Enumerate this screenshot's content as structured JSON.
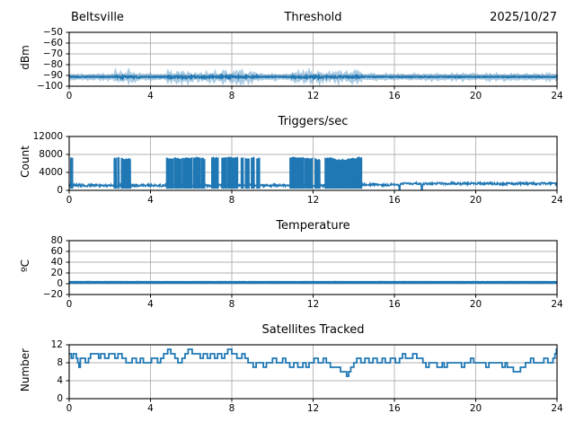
{
  "style": {
    "line_color": "#1f77b4",
    "grid_color": "#b0b0b0",
    "axis_color": "#000000",
    "background": "#ffffff",
    "legend": "none"
  },
  "chart_data": [
    {
      "type": "line",
      "title": "Threshold",
      "title_left": "Beltsville",
      "title_right": "2025/10/27",
      "ylabel": "dBm",
      "xlabel": "",
      "grid": true,
      "xlim": [
        0,
        24
      ],
      "ylim": [
        -100,
        -50
      ],
      "xticks": [
        0,
        4,
        8,
        12,
        16,
        20,
        24
      ],
      "yticks": [
        -50,
        -60,
        -70,
        -80,
        -90,
        -100
      ],
      "series": {
        "kind": "noisy_flat",
        "name": "threshold_dbm",
        "baseline": -91.4,
        "noise": 0.45,
        "dense_noise": 1.05,
        "dense_segments": [
          [
            2.2,
            3.5
          ],
          [
            4.8,
            9.3
          ],
          [
            10.9,
            14.4
          ]
        ],
        "linewidth": 1.8,
        "halo_width": 5
      }
    },
    {
      "type": "line",
      "title": "Triggers/sec",
      "ylabel": "Count",
      "xlabel": "",
      "grid": true,
      "xlim": [
        0,
        24
      ],
      "ylim": [
        0,
        12000
      ],
      "xticks": [
        0,
        4,
        8,
        12,
        16,
        20,
        24
      ],
      "yticks": [
        12000,
        8000,
        4000,
        0
      ],
      "series": {
        "kind": "bursty",
        "name": "triggers_per_sec",
        "baseline_segments": [
          [
            0,
            14.4,
            1100
          ],
          [
            14.4,
            16.25,
            1250
          ],
          [
            16.25,
            24,
            1500
          ]
        ],
        "baseline_noise": 260,
        "burst_peak": 7150,
        "burst_floor": 450,
        "burst_noise": 130,
        "burst_intervals": [
          [
            0.06,
            0.18
          ],
          [
            2.2,
            2.33
          ],
          [
            2.38,
            2.47
          ],
          [
            2.56,
            3.03
          ],
          [
            4.78,
            5.12
          ],
          [
            5.16,
            5.52
          ],
          [
            5.56,
            6.05
          ],
          [
            6.1,
            6.44
          ],
          [
            6.48,
            6.68
          ],
          [
            7.0,
            7.34
          ],
          [
            7.5,
            7.73
          ],
          [
            7.76,
            8.3
          ],
          [
            8.45,
            8.58
          ],
          [
            8.66,
            8.86
          ],
          [
            8.95,
            9.12
          ],
          [
            9.22,
            9.38
          ],
          [
            10.85,
            11.53
          ],
          [
            11.57,
            11.97
          ],
          [
            12.08,
            12.35
          ],
          [
            12.58,
            14.4
          ]
        ],
        "dropouts": [
          16.25,
          17.35
        ]
      }
    },
    {
      "type": "line",
      "title": "Temperature",
      "ylabel": "ºC",
      "xlabel": "",
      "grid": true,
      "xlim": [
        0,
        24
      ],
      "ylim": [
        -20,
        80
      ],
      "xticks": [
        0,
        4,
        8,
        12,
        16,
        20,
        24
      ],
      "yticks": [
        80,
        60,
        40,
        20,
        0,
        -20
      ],
      "series": {
        "kind": "noisy_flat",
        "name": "temperature_c",
        "baseline": 2.5,
        "noise": 0.15,
        "linewidth": 3.2
      }
    },
    {
      "type": "line",
      "title": "Satellites Tracked",
      "ylabel": "Number",
      "xlabel": "",
      "grid": true,
      "xlim": [
        0,
        24
      ],
      "ylim": [
        0,
        12
      ],
      "xticks": [
        0,
        4,
        8,
        12,
        16,
        20,
        24
      ],
      "yticks": [
        12,
        8,
        4,
        0
      ],
      "series": {
        "kind": "steps",
        "name": "satellites_tracked",
        "linewidth": 1.8,
        "points": [
          [
            0,
            10
          ],
          [
            0.1,
            9
          ],
          [
            0.2,
            10
          ],
          [
            0.35,
            9
          ],
          [
            0.42,
            8
          ],
          [
            0.48,
            7
          ],
          [
            0.55,
            9
          ],
          [
            0.8,
            8
          ],
          [
            0.95,
            9
          ],
          [
            1.05,
            10
          ],
          [
            1.45,
            9
          ],
          [
            1.55,
            10
          ],
          [
            1.75,
            9
          ],
          [
            1.95,
            10
          ],
          [
            2.25,
            9
          ],
          [
            2.4,
            10
          ],
          [
            2.6,
            9
          ],
          [
            2.8,
            8
          ],
          [
            3.1,
            9
          ],
          [
            3.3,
            8
          ],
          [
            3.5,
            9
          ],
          [
            3.65,
            8
          ],
          [
            4.05,
            9
          ],
          [
            4.35,
            8
          ],
          [
            4.5,
            9
          ],
          [
            4.65,
            10
          ],
          [
            4.85,
            11
          ],
          [
            5.0,
            10
          ],
          [
            5.2,
            9
          ],
          [
            5.35,
            8
          ],
          [
            5.55,
            9
          ],
          [
            5.7,
            10
          ],
          [
            5.85,
            11
          ],
          [
            6.05,
            10
          ],
          [
            6.45,
            9
          ],
          [
            6.6,
            10
          ],
          [
            6.8,
            9
          ],
          [
            6.95,
            10
          ],
          [
            7.15,
            9
          ],
          [
            7.3,
            10
          ],
          [
            7.5,
            9
          ],
          [
            7.65,
            10
          ],
          [
            7.8,
            11
          ],
          [
            8.0,
            10
          ],
          [
            8.25,
            9
          ],
          [
            8.5,
            10
          ],
          [
            8.65,
            9
          ],
          [
            8.8,
            8
          ],
          [
            9.05,
            7
          ],
          [
            9.2,
            8
          ],
          [
            9.55,
            7
          ],
          [
            9.7,
            8
          ],
          [
            10.0,
            9
          ],
          [
            10.2,
            8
          ],
          [
            10.5,
            9
          ],
          [
            10.65,
            8
          ],
          [
            10.85,
            7
          ],
          [
            11.05,
            8
          ],
          [
            11.25,
            7
          ],
          [
            11.5,
            8
          ],
          [
            11.65,
            7
          ],
          [
            11.8,
            8
          ],
          [
            12.05,
            9
          ],
          [
            12.25,
            8
          ],
          [
            12.5,
            9
          ],
          [
            12.65,
            8
          ],
          [
            12.85,
            7
          ],
          [
            13.35,
            6
          ],
          [
            13.65,
            5
          ],
          [
            13.75,
            6
          ],
          [
            13.85,
            7
          ],
          [
            14.0,
            8
          ],
          [
            14.15,
            9
          ],
          [
            14.35,
            8
          ],
          [
            14.55,
            9
          ],
          [
            14.75,
            8
          ],
          [
            14.95,
            9
          ],
          [
            15.15,
            8
          ],
          [
            15.4,
            9
          ],
          [
            15.55,
            8
          ],
          [
            15.8,
            9
          ],
          [
            16.05,
            8
          ],
          [
            16.25,
            9
          ],
          [
            16.4,
            10
          ],
          [
            16.55,
            9
          ],
          [
            16.9,
            10
          ],
          [
            17.1,
            9
          ],
          [
            17.4,
            8
          ],
          [
            17.55,
            7
          ],
          [
            17.7,
            8
          ],
          [
            18.1,
            7
          ],
          [
            18.35,
            8
          ],
          [
            18.45,
            7
          ],
          [
            18.6,
            8
          ],
          [
            19.3,
            7
          ],
          [
            19.45,
            8
          ],
          [
            19.75,
            9
          ],
          [
            19.9,
            8
          ],
          [
            20.5,
            7
          ],
          [
            20.65,
            8
          ],
          [
            21.3,
            7
          ],
          [
            21.45,
            8
          ],
          [
            21.55,
            7
          ],
          [
            21.85,
            6
          ],
          [
            22.2,
            7
          ],
          [
            22.45,
            8
          ],
          [
            22.7,
            9
          ],
          [
            22.85,
            8
          ],
          [
            23.35,
            9
          ],
          [
            23.55,
            8
          ],
          [
            23.8,
            9
          ],
          [
            23.9,
            10
          ],
          [
            23.97,
            11
          ],
          [
            24,
            11
          ]
        ]
      }
    }
  ]
}
